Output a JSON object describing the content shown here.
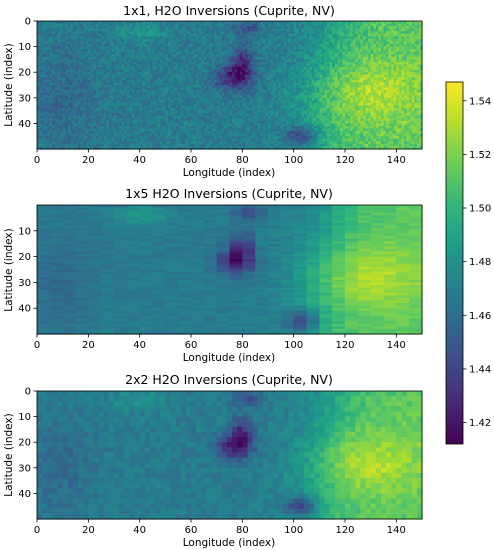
{
  "chart_data": [
    {
      "type": "heatmap",
      "title": "1x1, H2O Inversions (Cuprite, NV)",
      "xlabel": "Longitude (index)",
      "ylabel": "Latitude (index)",
      "xlim": [
        0,
        150
      ],
      "ylim": [
        50,
        0
      ],
      "xticks": [
        0,
        20,
        40,
        60,
        80,
        100,
        120,
        140
      ],
      "yticks": [
        0,
        10,
        20,
        30,
        40
      ],
      "grid_size": [
        150,
        50
      ],
      "block": [
        1,
        1
      ]
    },
    {
      "type": "heatmap",
      "title": "1x5 H2O Inversions (Cuprite, NV)",
      "xlabel": "Longitude (index)",
      "ylabel": "Latitude (index)",
      "xlim": [
        0,
        150
      ],
      "ylim": [
        50,
        0
      ],
      "xticks": [
        0,
        20,
        40,
        60,
        80,
        100,
        120,
        140
      ],
      "yticks": [
        10,
        20,
        30,
        40
      ],
      "grid_size": [
        150,
        50
      ],
      "block": [
        5,
        1
      ]
    },
    {
      "type": "heatmap",
      "title": "2x2 H2O Inversions (Cuprite, NV)",
      "xlabel": "Longitude (index)",
      "ylabel": "Latitude (index)",
      "xlim": [
        0,
        150
      ],
      "ylim": [
        50,
        0
      ],
      "xticks": [
        0,
        20,
        40,
        60,
        80,
        100,
        120,
        140
      ],
      "yticks": [
        0,
        10,
        20,
        30,
        40
      ],
      "grid_size": [
        150,
        50
      ],
      "block": [
        2,
        2
      ]
    }
  ],
  "colorbar": {
    "colormap": "viridis",
    "range": [
      1.412,
      1.547
    ],
    "ticks": [
      "1.42",
      "1.44",
      "1.46",
      "1.48",
      "1.50",
      "1.52",
      "1.54"
    ],
    "tick_values": [
      1.42,
      1.44,
      1.46,
      1.48,
      1.5,
      1.52,
      1.54
    ]
  }
}
